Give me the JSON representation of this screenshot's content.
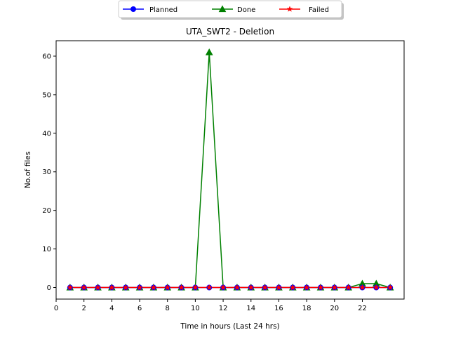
{
  "chart_data": {
    "type": "line",
    "title": "UTA_SWT2 - Deletion",
    "xlabel": "Time in hours (Last 24 hrs)",
    "ylabel": "No.of files",
    "xlim": [
      0,
      25
    ],
    "ylim": [
      -3,
      64
    ],
    "xticks": [
      0,
      2,
      4,
      6,
      8,
      10,
      12,
      14,
      16,
      18,
      20,
      22
    ],
    "yticks": [
      0,
      10,
      20,
      30,
      40,
      50,
      60
    ],
    "x": [
      1,
      2,
      3,
      4,
      5,
      6,
      7,
      8,
      9,
      10,
      11,
      12,
      13,
      14,
      15,
      16,
      17,
      18,
      19,
      20,
      21,
      22,
      23,
      24
    ],
    "series": [
      {
        "name": "Planned",
        "color": "#0000ff",
        "marker": "circle",
        "values": [
          0,
          0,
          0,
          0,
          0,
          0,
          0,
          0,
          0,
          0,
          0,
          0,
          0,
          0,
          0,
          0,
          0,
          0,
          0,
          0,
          0,
          0,
          0,
          0
        ]
      },
      {
        "name": "Done",
        "color": "#008000",
        "marker": "triangle",
        "values": [
          0,
          0,
          0,
          0,
          0,
          0,
          0,
          0,
          0,
          0,
          61,
          0,
          0,
          0,
          0,
          0,
          0,
          0,
          0,
          0,
          0,
          1,
          1,
          0
        ]
      },
      {
        "name": "Failed",
        "color": "#ff0000",
        "marker": "star",
        "values": [
          0,
          0,
          0,
          0,
          0,
          0,
          0,
          0,
          0,
          0,
          0,
          0,
          0,
          0,
          0,
          0,
          0,
          0,
          0,
          0,
          0,
          0,
          0,
          0
        ]
      }
    ],
    "legend_position": "top-center",
    "grid": false
  }
}
